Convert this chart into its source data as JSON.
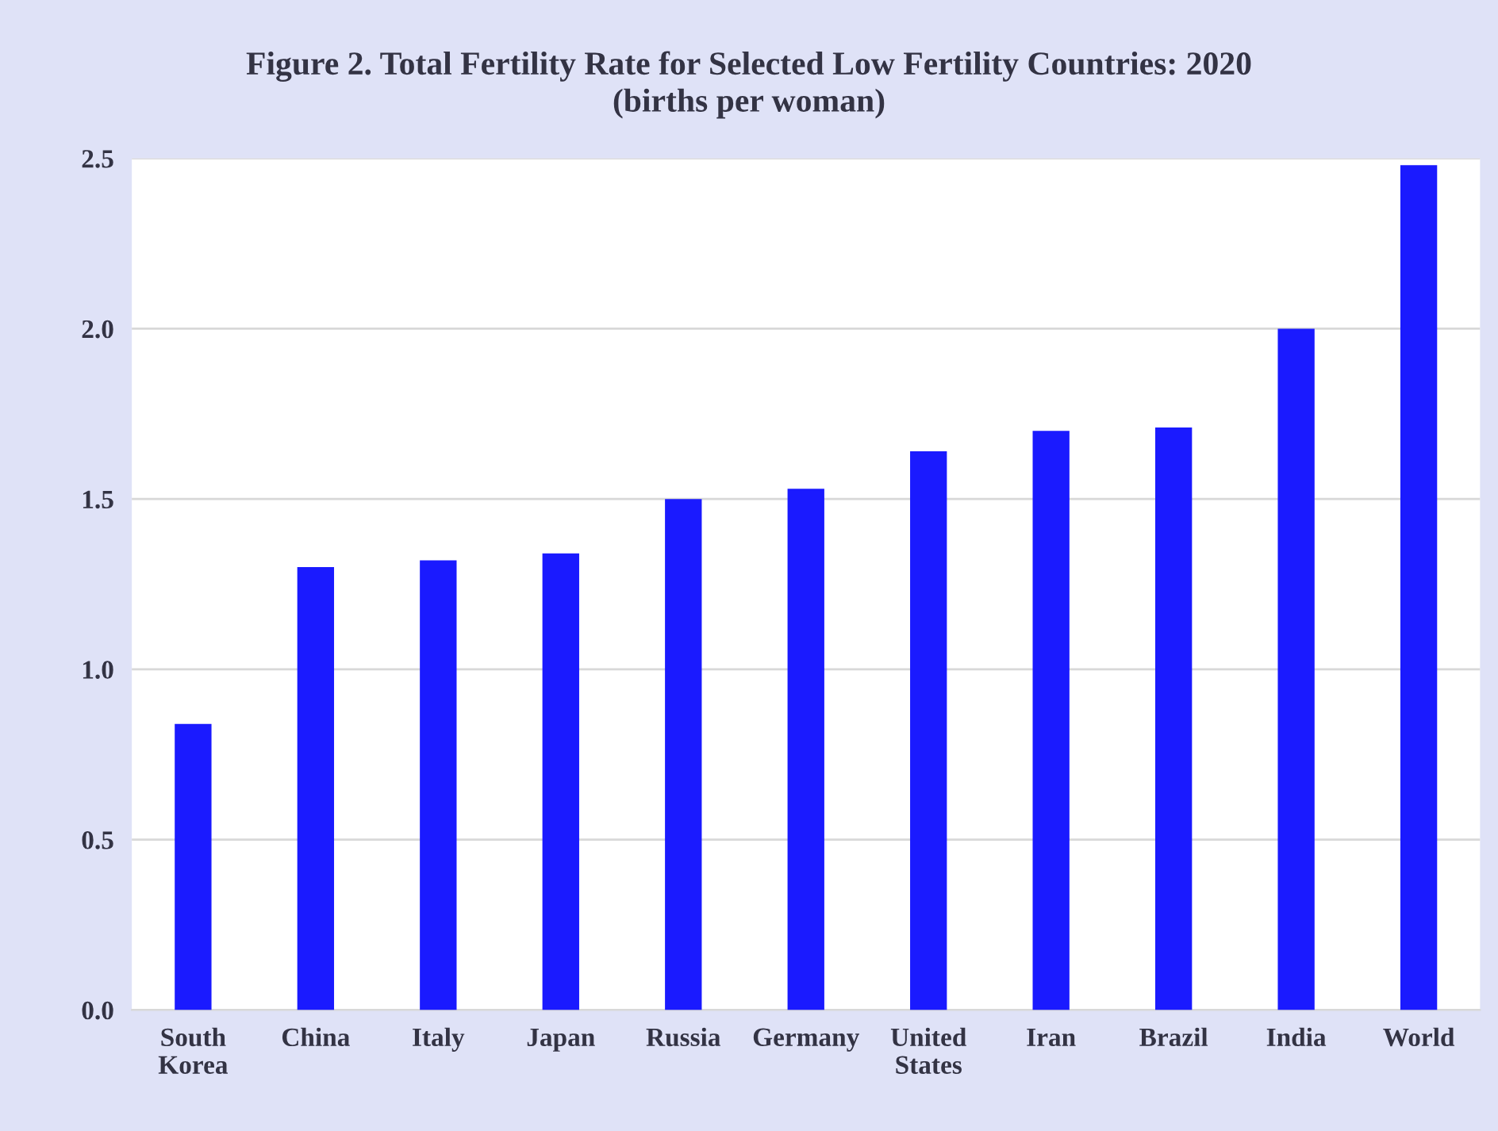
{
  "chart_data": {
    "type": "bar",
    "title": "Figure 2. Total Fertility Rate for Selected Low Fertility Countries: 2020\n(births per woman)",
    "categories": [
      "South\nKorea",
      "China",
      "Italy",
      "Japan",
      "Russia",
      "Germany",
      "United\nStates",
      "Iran",
      "Brazil",
      "India",
      "World"
    ],
    "values": [
      0.84,
      1.3,
      1.32,
      1.34,
      1.5,
      1.53,
      1.64,
      1.7,
      1.71,
      2.0,
      2.48
    ],
    "color": "#1a1aff",
    "ylim": [
      0,
      2.5
    ],
    "yticks": [
      {
        "value": 0,
        "label": "0.0"
      },
      {
        "value": 0.5,
        "label": "0.5"
      },
      {
        "value": 1.0,
        "label": "1.0"
      },
      {
        "value": 1.5,
        "label": "1.5"
      },
      {
        "value": 2.0,
        "label": "2.0"
      },
      {
        "value": 2.5,
        "label": "2.5"
      }
    ],
    "grid": "y"
  }
}
